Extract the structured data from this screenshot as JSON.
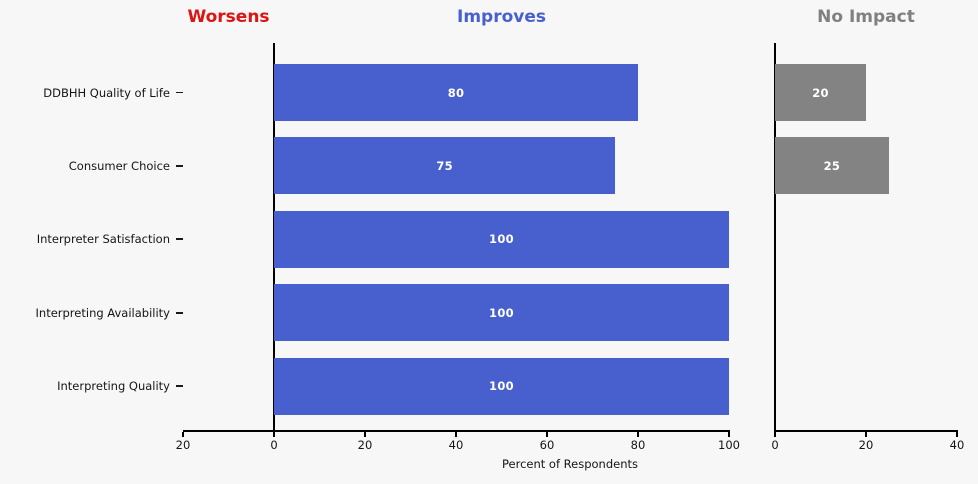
{
  "chart_data": {
    "type": "bar",
    "orientation": "horizontal",
    "title": "",
    "xlabel": "Percent of Respondents",
    "background": "#f7f7f7",
    "axis_color": "#000000",
    "bar_label_color": "#ffffff",
    "categories": [
      "DDBHH Quality of Life",
      "Consumer Choice",
      "Interpreter Satisfaction",
      "Interpreting Availability",
      "Interpreting Quality"
    ],
    "headers": [
      {
        "label": "Worsens",
        "color": "#dc1414"
      },
      {
        "label": "Improves",
        "color": "#4860cd"
      },
      {
        "label": "No Impact",
        "color": "#808080"
      }
    ],
    "panels": [
      {
        "series_name": "Improves",
        "bar_color": "#4860cd",
        "values": [
          80,
          75,
          100,
          100,
          100
        ],
        "xlim": [
          -20,
          100
        ],
        "tick_values": [
          -20,
          0,
          20,
          40,
          60,
          80,
          100
        ],
        "tick_labels": [
          "20",
          "0",
          "20",
          "40",
          "60",
          "80",
          "100"
        ],
        "grid": false
      },
      {
        "series_name": "No Impact",
        "bar_color": "#838383",
        "values": [
          20,
          25,
          0,
          0,
          0
        ],
        "xlim": [
          0,
          40
        ],
        "tick_values": [
          0,
          20,
          40
        ],
        "tick_labels": [
          "0",
          "20",
          "40"
        ],
        "grid": false
      }
    ],
    "legend": "none"
  }
}
